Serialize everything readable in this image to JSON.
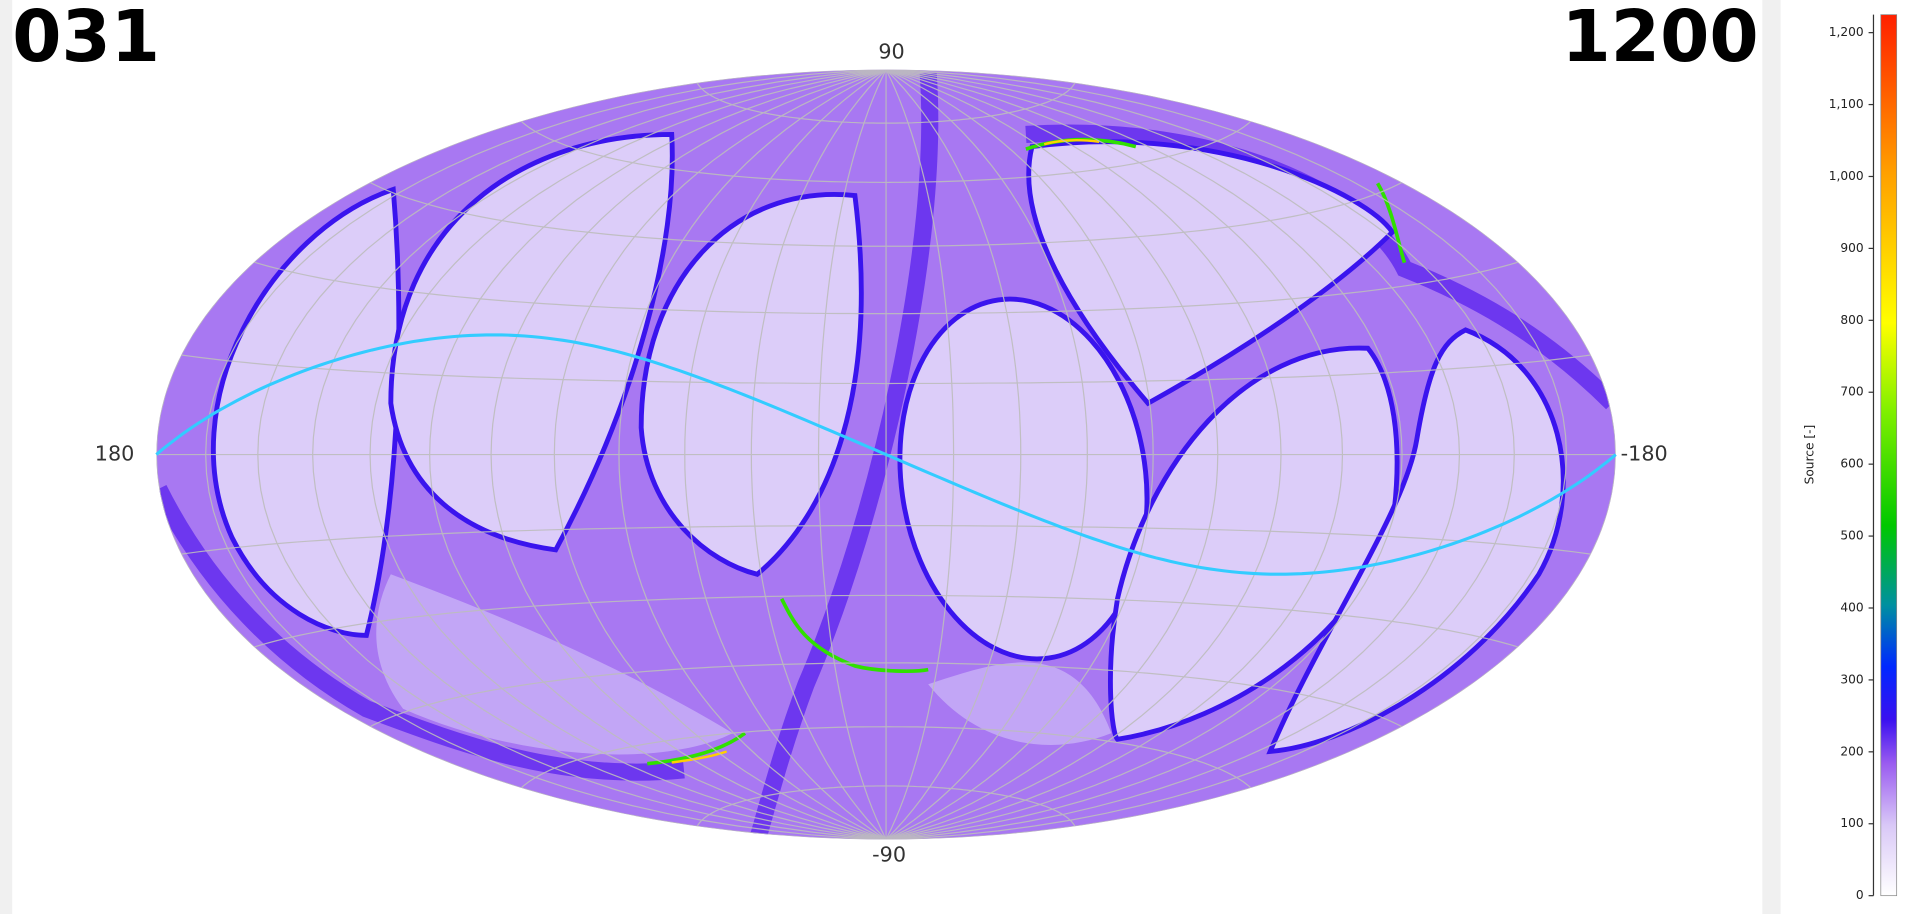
{
  "map": {
    "title_left": "031",
    "title_right": "1200",
    "axis_labels": {
      "top": "90",
      "bottom": "-90",
      "left": "180",
      "right": "-180"
    }
  },
  "colorbar": {
    "label": "Source [-]",
    "lim": [
      0,
      1225
    ],
    "ticks": [
      0,
      100,
      200,
      300,
      400,
      500,
      600,
      700,
      800,
      900,
      {
        "value": 1000,
        "label": "1,000"
      },
      {
        "value": 1100,
        "label": "1,100"
      },
      {
        "value": 1200,
        "label": "1,200"
      }
    ]
  }
}
